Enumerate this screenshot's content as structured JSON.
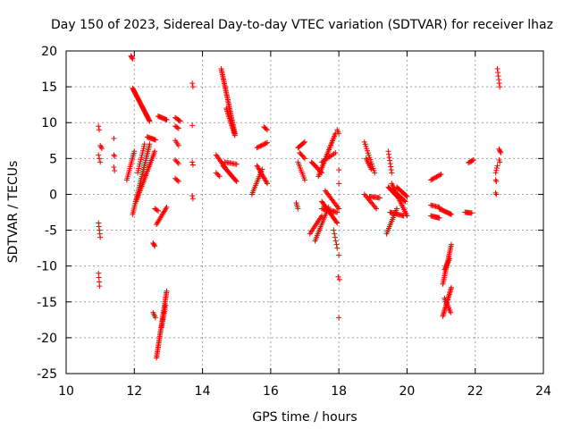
{
  "chart_data": {
    "type": "scatter",
    "title": "Day 150 of 2023, Sidereal Day-to-day VTEC variation (SDTVAR) for receiver lhaz",
    "xlabel": "GPS time / hours",
    "ylabel": "SDTVAR / TECUs",
    "xlim": [
      10,
      24
    ],
    "ylim": [
      -25,
      20
    ],
    "x_ticks": [
      "10",
      "12",
      "14",
      "16",
      "18",
      "20",
      "22",
      "24"
    ],
    "y_ticks": [
      "20",
      "15",
      "10",
      "5",
      "0",
      "-5",
      "-10",
      "-15",
      "-20",
      "-25"
    ],
    "x_tick_values": [
      10,
      12,
      14,
      16,
      18,
      20,
      22,
      24
    ],
    "y_tick_values": [
      20,
      15,
      10,
      5,
      0,
      -5,
      -10,
      -15,
      -20,
      -25
    ],
    "grid": true,
    "marker": "plus",
    "marker_color": "#ff0000",
    "segments": [
      {
        "x0": 10.95,
        "y0": 9.5,
        "x1": 10.97,
        "y1": 9.0,
        "n": 2
      },
      {
        "x0": 10.95,
        "y0": 5.5,
        "x1": 11.0,
        "y1": 4.5,
        "n": 3
      },
      {
        "x0": 11.0,
        "y0": 6.8,
        "x1": 11.05,
        "y1": 6.4,
        "n": 3
      },
      {
        "x0": 10.95,
        "y0": -4.0,
        "x1": 11.0,
        "y1": -6.0,
        "n": 5
      },
      {
        "x0": 10.95,
        "y0": -11.0,
        "x1": 10.98,
        "y1": -12.8,
        "n": 4
      },
      {
        "x0": 11.4,
        "y0": 7.8,
        "x1": 11.4,
        "y1": 7.8,
        "n": 1
      },
      {
        "x0": 11.4,
        "y0": 5.5,
        "x1": 11.42,
        "y1": 5.3,
        "n": 2
      },
      {
        "x0": 11.4,
        "y0": 3.8,
        "x1": 11.42,
        "y1": 3.3,
        "n": 2
      },
      {
        "x0": 11.9,
        "y0": 19.3,
        "x1": 11.95,
        "y1": 18.9,
        "n": 4
      },
      {
        "x0": 11.95,
        "y0": 14.8,
        "x1": 12.45,
        "y1": 10.2,
        "n": 40
      },
      {
        "x0": 11.78,
        "y0": 2.0,
        "x1": 12.0,
        "y1": 6.0,
        "n": 16
      },
      {
        "x0": 11.95,
        "y0": -2.8,
        "x1": 12.45,
        "y1": 7.0,
        "n": 40
      },
      {
        "x0": 12.05,
        "y0": -1.0,
        "x1": 12.6,
        "y1": 6.0,
        "n": 34
      },
      {
        "x0": 12.1,
        "y0": 3.0,
        "x1": 12.3,
        "y1": 7.0,
        "n": 14
      },
      {
        "x0": 12.38,
        "y0": 8.0,
        "x1": 12.62,
        "y1": 7.6,
        "n": 10
      },
      {
        "x0": 12.55,
        "y0": -6.8,
        "x1": 12.6,
        "y1": -7.2,
        "n": 4
      },
      {
        "x0": 12.55,
        "y0": -16.5,
        "x1": 12.62,
        "y1": -17.2,
        "n": 4
      },
      {
        "x0": 12.6,
        "y0": -2.0,
        "x1": 12.7,
        "y1": -2.3,
        "n": 4
      },
      {
        "x0": 12.65,
        "y0": -4.2,
        "x1": 12.95,
        "y1": -1.8,
        "n": 14
      },
      {
        "x0": 12.7,
        "y0": 10.9,
        "x1": 12.95,
        "y1": 10.4,
        "n": 10
      },
      {
        "x0": 12.65,
        "y0": -22.8,
        "x1": 12.95,
        "y1": -13.5,
        "n": 45
      },
      {
        "x0": 12.8,
        "y0": -18.5,
        "x1": 12.92,
        "y1": -15.5,
        "n": 12
      },
      {
        "x0": 13.2,
        "y0": 10.7,
        "x1": 13.35,
        "y1": 10.2,
        "n": 6
      },
      {
        "x0": 13.2,
        "y0": 9.5,
        "x1": 13.3,
        "y1": 9.2,
        "n": 4
      },
      {
        "x0": 13.2,
        "y0": 7.5,
        "x1": 13.3,
        "y1": 6.8,
        "n": 4
      },
      {
        "x0": 13.2,
        "y0": 4.8,
        "x1": 13.3,
        "y1": 4.3,
        "n": 4
      },
      {
        "x0": 13.2,
        "y0": 2.2,
        "x1": 13.3,
        "y1": 1.8,
        "n": 4
      },
      {
        "x0": 13.7,
        "y0": 15.5,
        "x1": 13.72,
        "y1": 15.0,
        "n": 2
      },
      {
        "x0": 13.7,
        "y0": 9.6,
        "x1": 13.7,
        "y1": 9.6,
        "n": 1
      },
      {
        "x0": 13.7,
        "y0": 4.5,
        "x1": 13.72,
        "y1": 4.1,
        "n": 2
      },
      {
        "x0": 13.7,
        "y0": -0.2,
        "x1": 13.72,
        "y1": -0.6,
        "n": 2
      },
      {
        "x0": 14.55,
        "y0": 17.5,
        "x1": 14.95,
        "y1": 8.5,
        "n": 45
      },
      {
        "x0": 14.7,
        "y0": 12.0,
        "x1": 14.95,
        "y1": 8.2,
        "n": 20
      },
      {
        "x0": 14.4,
        "y0": 5.5,
        "x1": 14.7,
        "y1": 3.5,
        "n": 12
      },
      {
        "x0": 14.4,
        "y0": 3.0,
        "x1": 14.5,
        "y1": 2.5,
        "n": 4
      },
      {
        "x0": 14.6,
        "y0": 4.0,
        "x1": 15.0,
        "y1": 1.8,
        "n": 18
      },
      {
        "x0": 14.65,
        "y0": 4.5,
        "x1": 15.0,
        "y1": 4.2,
        "n": 10
      },
      {
        "x0": 15.45,
        "y0": 0.0,
        "x1": 15.75,
        "y1": 3.5,
        "n": 15
      },
      {
        "x0": 15.6,
        "y0": 4.0,
        "x1": 15.9,
        "y1": 1.5,
        "n": 15
      },
      {
        "x0": 15.6,
        "y0": 6.5,
        "x1": 15.9,
        "y1": 7.2,
        "n": 10
      },
      {
        "x0": 15.8,
        "y0": 9.4,
        "x1": 15.9,
        "y1": 9.0,
        "n": 4
      },
      {
        "x0": 16.75,
        "y0": -1.2,
        "x1": 16.8,
        "y1": -2.0,
        "n": 4
      },
      {
        "x0": 16.8,
        "y0": 6.5,
        "x1": 17.0,
        "y1": 7.3,
        "n": 8
      },
      {
        "x0": 16.8,
        "y0": 4.5,
        "x1": 17.0,
        "y1": 2.0,
        "n": 10
      },
      {
        "x0": 16.85,
        "y0": 5.8,
        "x1": 17.0,
        "y1": 5.0,
        "n": 6
      },
      {
        "x0": 17.15,
        "y0": -5.5,
        "x1": 17.5,
        "y1": -3.0,
        "n": 14
      },
      {
        "x0": 17.2,
        "y0": 4.5,
        "x1": 17.5,
        "y1": 3.0,
        "n": 12
      },
      {
        "x0": 17.3,
        "y0": -6.5,
        "x1": 17.7,
        "y1": -1.8,
        "n": 20
      },
      {
        "x0": 17.4,
        "y0": 2.5,
        "x1": 17.9,
        "y1": 8.5,
        "n": 30
      },
      {
        "x0": 17.5,
        "y0": 4.5,
        "x1": 17.9,
        "y1": 5.8,
        "n": 10
      },
      {
        "x0": 17.5,
        "y0": -1.0,
        "x1": 17.95,
        "y1": -4.0,
        "n": 20
      },
      {
        "x0": 17.5,
        "y0": -2.0,
        "x1": 17.95,
        "y1": -2.5,
        "n": 15
      },
      {
        "x0": 17.6,
        "y0": 0.5,
        "x1": 18.0,
        "y1": -2.0,
        "n": 15
      },
      {
        "x0": 17.85,
        "y0": -5.0,
        "x1": 17.95,
        "y1": -7.5,
        "n": 6
      },
      {
        "x0": 17.95,
        "y0": 9.0,
        "x1": 18.0,
        "y1": 8.5,
        "n": 3
      },
      {
        "x0": 18.0,
        "y0": 3.4,
        "x1": 18.0,
        "y1": 3.4,
        "n": 1
      },
      {
        "x0": 18.0,
        "y0": 1.5,
        "x1": 18.0,
        "y1": 1.5,
        "n": 1
      },
      {
        "x0": 18.0,
        "y0": -8.5,
        "x1": 18.0,
        "y1": -8.5,
        "n": 1
      },
      {
        "x0": 17.98,
        "y0": -11.5,
        "x1": 18.02,
        "y1": -11.9,
        "n": 2
      },
      {
        "x0": 18.0,
        "y0": -17.2,
        "x1": 18.0,
        "y1": -17.2,
        "n": 1
      },
      {
        "x0": 18.75,
        "y0": 7.3,
        "x1": 19.05,
        "y1": 3.0,
        "n": 15
      },
      {
        "x0": 18.8,
        "y0": 5.0,
        "x1": 18.95,
        "y1": 3.5,
        "n": 8
      },
      {
        "x0": 18.75,
        "y0": 0.0,
        "x1": 19.1,
        "y1": -2.0,
        "n": 12
      },
      {
        "x0": 18.9,
        "y0": -0.3,
        "x1": 19.2,
        "y1": -0.5,
        "n": 10
      },
      {
        "x0": 19.4,
        "y0": -5.5,
        "x1": 19.7,
        "y1": -2.0,
        "n": 15
      },
      {
        "x0": 19.45,
        "y0": 6.0,
        "x1": 19.55,
        "y1": 3.0,
        "n": 8
      },
      {
        "x0": 19.45,
        "y0": 1.0,
        "x1": 19.75,
        "y1": -0.5,
        "n": 12
      },
      {
        "x0": 19.5,
        "y0": -2.5,
        "x1": 19.9,
        "y1": -3.0,
        "n": 14
      },
      {
        "x0": 19.55,
        "y0": 1.5,
        "x1": 20.0,
        "y1": -3.0,
        "n": 22
      },
      {
        "x0": 19.6,
        "y0": 0.5,
        "x1": 19.95,
        "y1": -1.0,
        "n": 14
      },
      {
        "x0": 19.7,
        "y0": 1.0,
        "x1": 20.0,
        "y1": -0.3,
        "n": 12
      },
      {
        "x0": 20.7,
        "y0": -3.0,
        "x1": 20.95,
        "y1": -3.3,
        "n": 10
      },
      {
        "x0": 20.7,
        "y0": 2.0,
        "x1": 21.0,
        "y1": 2.8,
        "n": 10
      },
      {
        "x0": 20.7,
        "y0": -1.5,
        "x1": 20.95,
        "y1": -1.8,
        "n": 8
      },
      {
        "x0": 20.95,
        "y0": -2.0,
        "x1": 21.3,
        "y1": -2.8,
        "n": 14
      },
      {
        "x0": 21.05,
        "y0": -12.5,
        "x1": 21.3,
        "y1": -7.0,
        "n": 25
      },
      {
        "x0": 21.05,
        "y0": -17.0,
        "x1": 21.3,
        "y1": -13.0,
        "n": 22
      },
      {
        "x0": 21.1,
        "y0": -10.5,
        "x1": 21.25,
        "y1": -9.0,
        "n": 8
      },
      {
        "x0": 21.1,
        "y0": -14.5,
        "x1": 21.28,
        "y1": -16.5,
        "n": 10
      },
      {
        "x0": 21.7,
        "y0": -2.5,
        "x1": 21.9,
        "y1": -2.6,
        "n": 8
      },
      {
        "x0": 21.8,
        "y0": 4.4,
        "x1": 21.95,
        "y1": 4.8,
        "n": 6
      },
      {
        "x0": 22.6,
        "y0": 3.0,
        "x1": 22.65,
        "y1": 4.0,
        "n": 4
      },
      {
        "x0": 22.6,
        "y0": 2.0,
        "x1": 22.62,
        "y1": 1.8,
        "n": 2
      },
      {
        "x0": 22.6,
        "y0": 0.2,
        "x1": 22.62,
        "y1": 0.0,
        "n": 2
      },
      {
        "x0": 22.65,
        "y0": 17.5,
        "x1": 22.72,
        "y1": 15.0,
        "n": 6
      },
      {
        "x0": 22.7,
        "y0": 6.3,
        "x1": 22.75,
        "y1": 5.8,
        "n": 4
      },
      {
        "x0": 22.7,
        "y0": 4.8,
        "x1": 22.72,
        "y1": 4.5,
        "n": 2
      }
    ]
  }
}
